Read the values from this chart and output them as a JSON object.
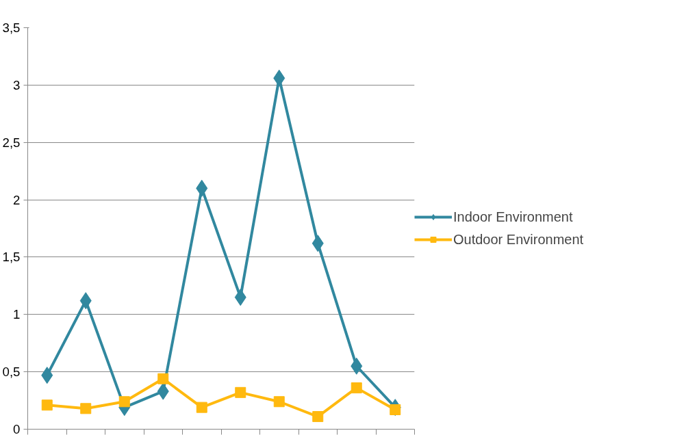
{
  "chart_data": {
    "type": "line",
    "categories": [
      null,
      null,
      null,
      null,
      null,
      null,
      null,
      null,
      null,
      null
    ],
    "series": [
      {
        "name": "Indoor Environment",
        "color": "#31889f",
        "marker": "diamond",
        "values": [
          0.47,
          1.12,
          0.19,
          0.33,
          2.1,
          1.15,
          3.06,
          1.62,
          0.55,
          0.19
        ]
      },
      {
        "name": "Outdoor Environment",
        "color": "#ffb90f",
        "marker": "square",
        "values": [
          0.21,
          0.18,
          0.24,
          0.44,
          0.19,
          0.32,
          0.24,
          0.11,
          0.36,
          0.17
        ]
      }
    ],
    "ylim": [
      0,
      3.5
    ],
    "yticks": [
      0,
      {
        "value": 0.5,
        "label": "0,5"
      },
      1,
      {
        "value": 1.5,
        "label": "1,5"
      },
      2,
      {
        "value": 2.5,
        "label": "2,5"
      },
      3,
      {
        "value": 3.5,
        "label": "3,5"
      }
    ],
    "grid": "y",
    "legend": "right",
    "tick_labels": "y",
    "line_style": "solid"
  }
}
